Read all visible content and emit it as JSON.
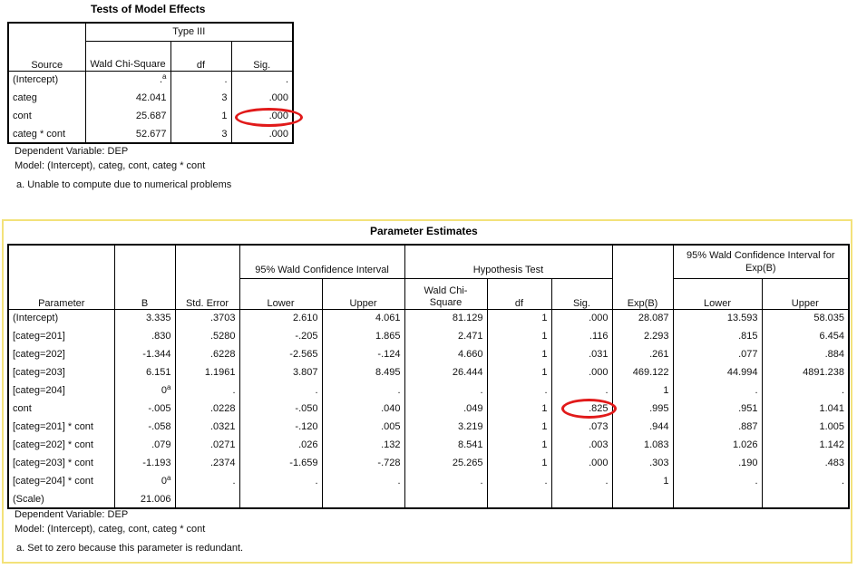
{
  "tests": {
    "title": "Tests of Model Effects",
    "group_header": "Type III",
    "col_source": "Source",
    "col_wald": "Wald Chi-Square",
    "col_df": "df",
    "col_sig": "Sig.",
    "rows": [
      {
        "source": "(Intercept)",
        "wald": ".",
        "wald_sup": "a",
        "df": ".",
        "sig": "."
      },
      {
        "source": "categ",
        "wald": "42.041",
        "wald_sup": "",
        "df": "3",
        "sig": ".000"
      },
      {
        "source": "cont",
        "wald": "25.687",
        "wald_sup": "",
        "df": "1",
        "sig": ".000"
      },
      {
        "source": "categ * cont",
        "wald": "52.677",
        "wald_sup": "",
        "df": "3",
        "sig": ".000"
      }
    ],
    "foot_dep": "Dependent Variable: DEP",
    "foot_model": "Model: (Intercept), categ, cont, categ * cont",
    "foot_note": "a. Unable to compute due to numerical problems"
  },
  "params": {
    "title": "Parameter Estimates",
    "col_parameter": "Parameter",
    "col_b": "B",
    "col_se": "Std. Error",
    "group_ci": "95% Wald Confidence Interval",
    "group_ht": "Hypothesis Test",
    "col_expb": "Exp(B)",
    "group_ci_exp": "95% Wald Confidence Interval for Exp(B)",
    "col_lower": "Lower",
    "col_upper": "Upper",
    "col_wald": "Wald Chi-Square",
    "col_df": "df",
    "col_sig": "Sig.",
    "rows": [
      {
        "p": "(Intercept)",
        "b": "3.335",
        "bsup": "",
        "se": ".3703",
        "lo": "2.610",
        "up": "4.061",
        "wald": "81.129",
        "df": "1",
        "sig": ".000",
        "exp": "28.087",
        "elo": "13.593",
        "eup": "58.035"
      },
      {
        "p": "[categ=201]",
        "b": ".830",
        "bsup": "",
        "se": ".5280",
        "lo": "-.205",
        "up": "1.865",
        "wald": "2.471",
        "df": "1",
        "sig": ".116",
        "exp": "2.293",
        "elo": ".815",
        "eup": "6.454"
      },
      {
        "p": "[categ=202]",
        "b": "-1.344",
        "bsup": "",
        "se": ".6228",
        "lo": "-2.565",
        "up": "-.124",
        "wald": "4.660",
        "df": "1",
        "sig": ".031",
        "exp": ".261",
        "elo": ".077",
        "eup": ".884"
      },
      {
        "p": "[categ=203]",
        "b": "6.151",
        "bsup": "",
        "se": "1.1961",
        "lo": "3.807",
        "up": "8.495",
        "wald": "26.444",
        "df": "1",
        "sig": ".000",
        "exp": "469.122",
        "elo": "44.994",
        "eup": "4891.238"
      },
      {
        "p": "[categ=204]",
        "b": "0",
        "bsup": "a",
        "se": ".",
        "lo": ".",
        "up": ".",
        "wald": ".",
        "df": ".",
        "sig": ".",
        "exp": "1",
        "elo": ".",
        "eup": "."
      },
      {
        "p": "cont",
        "b": "-.005",
        "bsup": "",
        "se": ".0228",
        "lo": "-.050",
        "up": ".040",
        "wald": ".049",
        "df": "1",
        "sig": ".825",
        "exp": ".995",
        "elo": ".951",
        "eup": "1.041"
      },
      {
        "p": "[categ=201] * cont",
        "b": "-.058",
        "bsup": "",
        "se": ".0321",
        "lo": "-.120",
        "up": ".005",
        "wald": "3.219",
        "df": "1",
        "sig": ".073",
        "exp": ".944",
        "elo": ".887",
        "eup": "1.005"
      },
      {
        "p": "[categ=202] * cont",
        "b": ".079",
        "bsup": "",
        "se": ".0271",
        "lo": ".026",
        "up": ".132",
        "wald": "8.541",
        "df": "1",
        "sig": ".003",
        "exp": "1.083",
        "elo": "1.026",
        "eup": "1.142"
      },
      {
        "p": "[categ=203] * cont",
        "b": "-1.193",
        "bsup": "",
        "se": ".2374",
        "lo": "-1.659",
        "up": "-.728",
        "wald": "25.265",
        "df": "1",
        "sig": ".000",
        "exp": ".303",
        "elo": ".190",
        "eup": ".483"
      },
      {
        "p": "[categ=204] * cont",
        "b": "0",
        "bsup": "a",
        "se": ".",
        "lo": ".",
        "up": ".",
        "wald": ".",
        "df": ".",
        "sig": ".",
        "exp": "1",
        "elo": ".",
        "eup": "."
      },
      {
        "p": "(Scale)",
        "b": "21.006",
        "bsup": "",
        "se": "",
        "lo": "",
        "up": "",
        "wald": "",
        "df": "",
        "sig": "",
        "exp": "",
        "elo": "",
        "eup": ""
      }
    ],
    "foot_dep": "Dependent Variable: DEP",
    "foot_model": "Model: (Intercept), categ, cont, categ * cont",
    "foot_note": "a. Set to zero because this parameter is redundant."
  },
  "colors": {
    "highlight": "#e11a1a",
    "frame": "#f3e27a"
  }
}
